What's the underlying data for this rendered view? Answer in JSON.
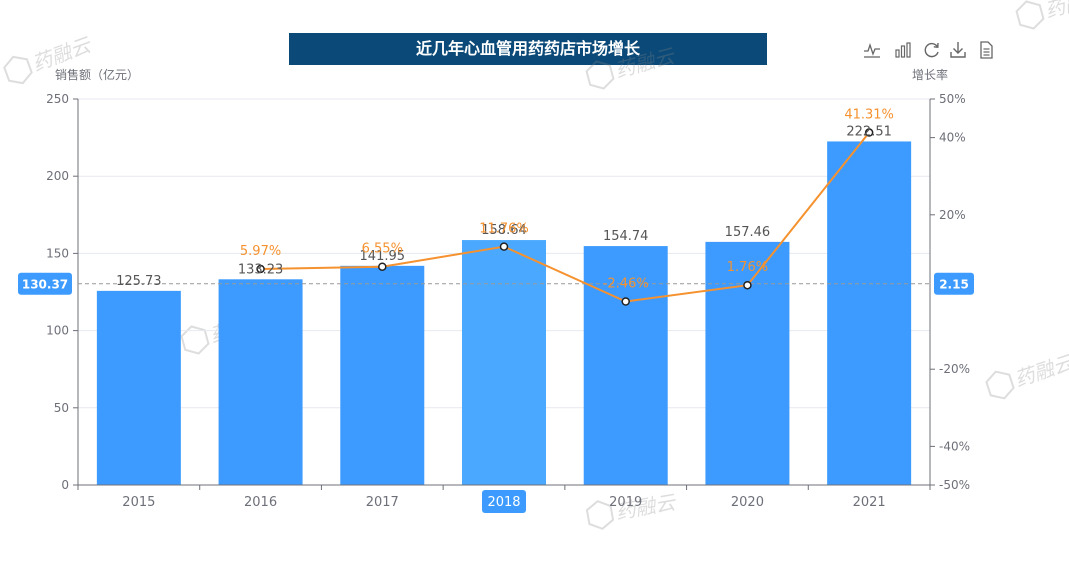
{
  "chart_data": {
    "type": "bar",
    "title": "近几年心血管用药药店市场增长",
    "categories": [
      "2015",
      "2016",
      "2017",
      "2018",
      "2019",
      "2020",
      "2021"
    ],
    "y_left_label": "销售额（亿元）",
    "y_right_label": "增长率",
    "y_left_range": [
      0,
      250
    ],
    "y_left_ticks": [
      "0",
      "50",
      "100",
      "150",
      "200",
      "250"
    ],
    "y_right_range": [
      -50,
      50
    ],
    "y_right_ticks": [
      "-50%",
      "-40%",
      "-20%",
      "20%",
      "40%",
      "50%"
    ],
    "series": [
      {
        "type": "bar",
        "values": [
          125.73,
          133.23,
          141.95,
          158.64,
          154.74,
          157.46,
          222.51
        ],
        "labels": [
          "125.73",
          "133.23",
          "141.95",
          "158.64",
          "154.74",
          "157.46",
          "222.51"
        ]
      },
      {
        "type": "line",
        "axis": "right",
        "values": [
          null,
          5.97,
          6.55,
          11.76,
          -2.46,
          1.76,
          41.31
        ],
        "labels": [
          "",
          "5.97%",
          "6.55%",
          "11.76%",
          "-2.46%",
          "1.76%",
          "41.31%"
        ]
      }
    ],
    "highlighted_category": "2018",
    "crosshair": {
      "left_value": "130.37",
      "right_value": "2.15"
    },
    "colors": {
      "bar": "#3d9bff",
      "bar_highlight": "#4aa8ff",
      "line": "#f5922f",
      "line_label": "#f5922f",
      "title_bg": "#0b4a78",
      "badge": "#3d9bff",
      "axis_text": "#6e7079",
      "grid": "#e6e9ef"
    },
    "watermark": "药融云"
  },
  "toolbox": {
    "icons": [
      "line-chart-icon",
      "bar-chart-icon",
      "refresh-icon",
      "download-icon",
      "data-view-icon"
    ]
  }
}
